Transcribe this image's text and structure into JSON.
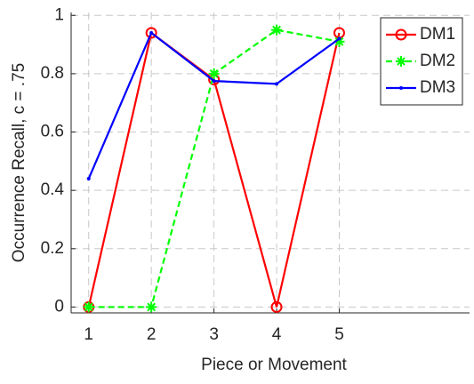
{
  "chart_data": {
    "type": "line",
    "x": [
      1,
      2,
      3,
      4,
      5
    ],
    "series": [
      {
        "name": "DM1",
        "color": "#ff0000",
        "marker": "circle",
        "dash": "solid",
        "values": [
          0,
          0.94,
          0.78,
          0,
          0.94
        ]
      },
      {
        "name": "DM2",
        "color": "#00ff00",
        "marker": "asterisk",
        "dash": "dashed",
        "values": [
          0,
          0,
          0.8,
          0.95,
          0.91
        ]
      },
      {
        "name": "DM3",
        "color": "#0000ff",
        "marker": "dot",
        "dash": "solid",
        "values": [
          0.44,
          0.94,
          0.775,
          0.765,
          0.92
        ]
      }
    ],
    "xlabel": "Piece or Movement",
    "ylabel": "Occurrence Recall, c = .75",
    "xlim": [
      0.72,
      7.08
    ],
    "xticks": [
      1,
      2,
      3,
      4,
      5
    ],
    "ylim": [
      -0.02,
      1.01
    ],
    "yticks": [
      0,
      0.2,
      0.4,
      0.6,
      0.8,
      1
    ],
    "grid": true,
    "legend": "upper right"
  }
}
